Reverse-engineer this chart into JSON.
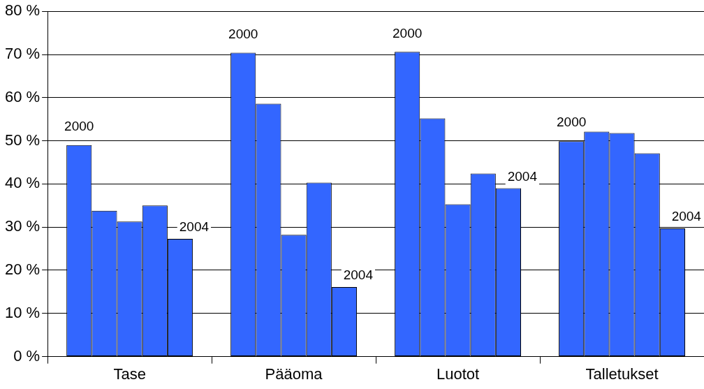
{
  "chart_data": {
    "type": "bar",
    "categories": [
      "Tase",
      "Pääoma",
      "Luotot",
      "Talletukset"
    ],
    "series": [
      {
        "color": "#3366ff",
        "values": [
          49,
          70.4,
          70.6,
          49.9
        ]
      },
      {
        "color": "#3366ff",
        "values": [
          33.8,
          58.6,
          55.2,
          52.1
        ]
      },
      {
        "color": "#3366ff",
        "values": [
          31.3,
          28.2,
          35.3,
          51.8
        ]
      },
      {
        "color": "#3366ff",
        "values": [
          35,
          40.3,
          42.4,
          47.1
        ]
      },
      {
        "color": "#3366ff",
        "values": [
          27.3,
          16.1,
          39,
          29.7
        ]
      }
    ],
    "ylim": [
      0,
      80
    ],
    "yticks": [
      {
        "value": 0,
        "label": "0 %"
      },
      {
        "value": 10,
        "label": "10 %"
      },
      {
        "value": 20,
        "label": "20 %"
      },
      {
        "value": 30,
        "label": "30 %"
      },
      {
        "value": 40,
        "label": "40 %"
      },
      {
        "value": 50,
        "label": "50 %"
      },
      {
        "value": 60,
        "label": "60 %"
      },
      {
        "value": 70,
        "label": "70 %"
      },
      {
        "value": 80,
        "label": "80 %"
      }
    ],
    "grid": "y",
    "legend": false,
    "annotations": [
      "2000",
      "2004",
      "2000",
      "2004",
      "2000",
      "2004",
      "2000",
      "2004"
    ]
  }
}
